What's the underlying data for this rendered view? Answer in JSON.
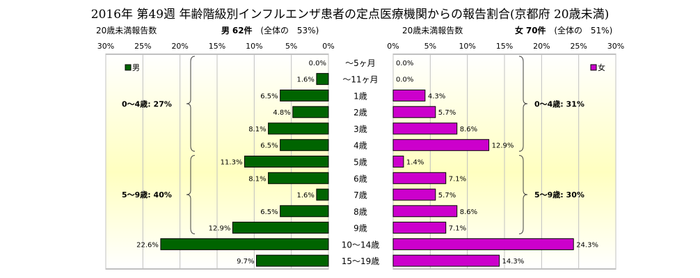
{
  "title": "2016年 第49週 年齢階級別インフルエンザ患者の定点医療機関からの報告割合(京都府 20歳未満)",
  "left_header": {
    "count_label": "20歳未満報告数",
    "sex": "男",
    "count": "62件",
    "share_prefix": "(全体の",
    "share": "53%)"
  },
  "right_header": {
    "count_label": "20歳未満報告数",
    "sex": "女",
    "count": "70件",
    "share_prefix": "(全体の",
    "share": "51%)"
  },
  "chart_data": {
    "type": "bar",
    "orientation": "horizontal-mirrored",
    "categories": [
      "～5ヶ月",
      "～11ヶ月",
      "1歳",
      "2歳",
      "3歳",
      "4歳",
      "5歳",
      "6歳",
      "7歳",
      "8歳",
      "9歳",
      "10～14歳",
      "15～19歳"
    ],
    "series": [
      {
        "name": "男",
        "color": "#006400",
        "values": [
          0.0,
          1.6,
          6.5,
          4.8,
          8.1,
          6.5,
          11.3,
          8.1,
          1.6,
          6.5,
          12.9,
          22.6,
          9.7
        ],
        "labels": [
          "0.0%",
          "1.6%",
          "6.5%",
          "4.8%",
          "8.1%",
          "6.5%",
          "11.3%",
          "8.1%",
          "1.6%",
          "6.5%",
          "12.9%",
          "22.6%",
          "9.7%"
        ]
      },
      {
        "name": "女",
        "color": "#cc00cc",
        "values": [
          0.0,
          0.0,
          4.3,
          5.7,
          8.6,
          12.9,
          1.4,
          7.1,
          5.7,
          8.6,
          7.1,
          24.3,
          14.3
        ],
        "labels": [
          "0.0%",
          "0.0%",
          "4.3%",
          "5.7%",
          "8.6%",
          "12.9%",
          "1.4%",
          "7.1%",
          "5.7%",
          "8.6%",
          "7.1%",
          "24.3%",
          "14.3%"
        ]
      }
    ],
    "xlim": [
      0,
      30
    ],
    "ticks_left": [
      "30%",
      "25%",
      "20%",
      "15%",
      "10%",
      "5%",
      "0%"
    ],
    "ticks_right": [
      "0%",
      "5%",
      "10%",
      "15%",
      "20%",
      "25%",
      "30%"
    ],
    "group_annotations_left": [
      "0～4歳: 27%",
      "5～9歳: 40%"
    ],
    "group_annotations_right": [
      "0～4歳: 31%",
      "5～9歳: 30%"
    ],
    "grid": true,
    "legend_position": "top-left / top-right"
  }
}
